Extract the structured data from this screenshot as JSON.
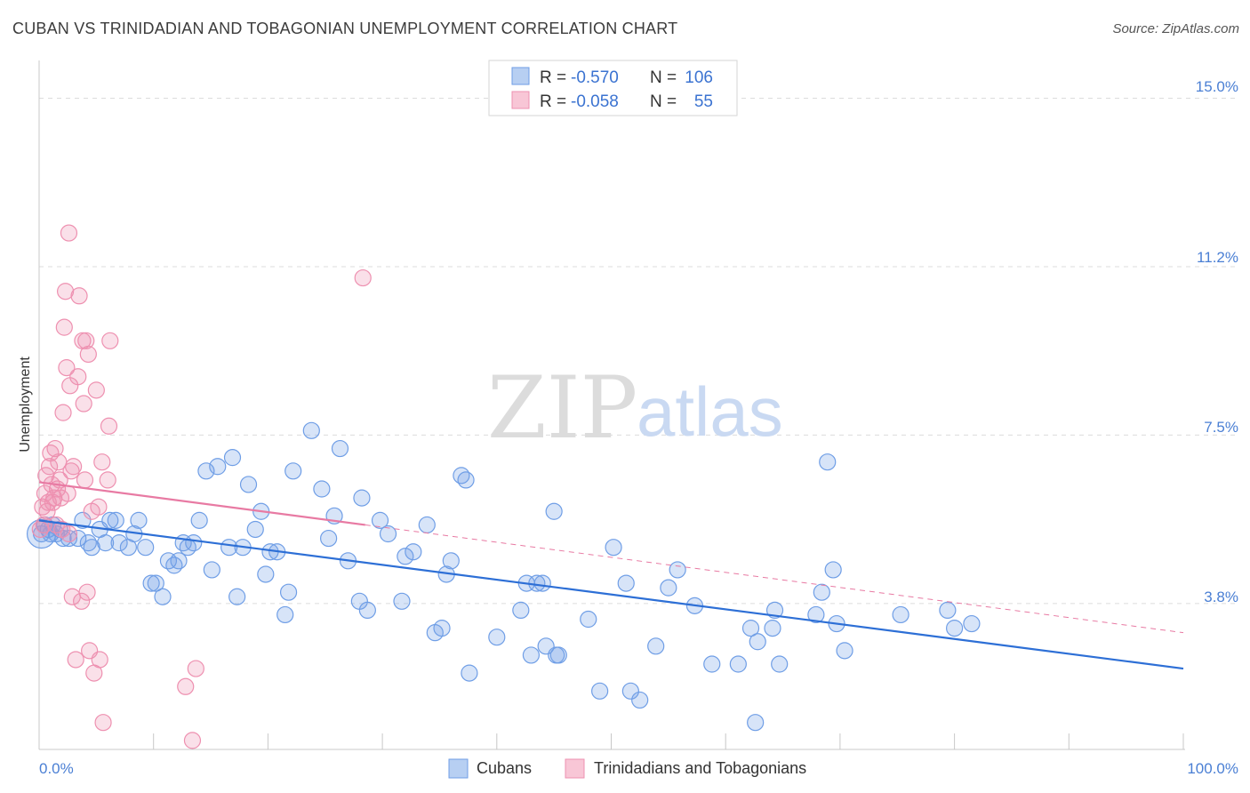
{
  "title": "CUBAN VS TRINIDADIAN AND TOBAGONIAN UNEMPLOYMENT CORRELATION CHART",
  "source": "Source: ZipAtlas.com",
  "watermark": {
    "zip": "ZIP",
    "atlas": "atlas"
  },
  "legend": {
    "rows": [
      {
        "r_label": "R =",
        "r_value": "-0.570",
        "n_label": "N =",
        "n_value": "106"
      },
      {
        "r_label": "R =",
        "r_value": "-0.058",
        "n_label": "N =",
        "n_value": "55"
      }
    ]
  },
  "chart_data": {
    "type": "scatter",
    "title": "CUBAN VS TRINIDADIAN AND TOBAGONIAN UNEMPLOYMENT CORRELATION CHART",
    "xlabel": "",
    "ylabel": "Unemployment",
    "x_tick_labels": [
      "0.0%",
      "100.0%"
    ],
    "y_tick_labels": [
      "15.0%",
      "11.2%",
      "7.5%",
      "3.8%"
    ],
    "y_ticks": [
      15.0,
      11.25,
      7.5,
      3.75
    ],
    "xlim": [
      0,
      100
    ],
    "ylim": [
      0.5,
      16.0
    ],
    "grid": true,
    "colors": {
      "cubans": "#6f9ee6",
      "trini": "#ee90b0",
      "cubans_line": "#2d6fd6",
      "trini_line": "#e87aa3"
    },
    "series": [
      {
        "name": "Cubans",
        "color": "#6f9ee6",
        "r": -0.57,
        "n": 106,
        "trend": {
          "x0": 0,
          "y0": 5.6,
          "x1": 100,
          "y1": 2.3
        },
        "points": [
          [
            0.2,
            5.3
          ],
          [
            0.5,
            5.5
          ],
          [
            0.8,
            5.4
          ],
          [
            1.0,
            5.3
          ],
          [
            1.2,
            5.5
          ],
          [
            1.5,
            5.3
          ],
          [
            1.8,
            5.4
          ],
          [
            2.1,
            5.2
          ],
          [
            2.6,
            5.2
          ],
          [
            3.4,
            5.2
          ],
          [
            3.8,
            5.6
          ],
          [
            4.3,
            5.1
          ],
          [
            4.6,
            5.0
          ],
          [
            5.3,
            5.4
          ],
          [
            5.8,
            5.1
          ],
          [
            6.2,
            5.6
          ],
          [
            6.7,
            5.6
          ],
          [
            7.0,
            5.1
          ],
          [
            7.8,
            5.0
          ],
          [
            8.3,
            5.3
          ],
          [
            8.7,
            5.6
          ],
          [
            9.3,
            5.0
          ],
          [
            9.8,
            4.2
          ],
          [
            10.2,
            4.2
          ],
          [
            10.8,
            3.9
          ],
          [
            11.3,
            4.7
          ],
          [
            11.8,
            4.6
          ],
          [
            12.2,
            4.7
          ],
          [
            12.6,
            5.1
          ],
          [
            13.0,
            5.0
          ],
          [
            13.5,
            5.1
          ],
          [
            14.0,
            5.6
          ],
          [
            14.6,
            6.7
          ],
          [
            15.1,
            4.5
          ],
          [
            15.6,
            6.8
          ],
          [
            16.6,
            5.0
          ],
          [
            16.9,
            7.0
          ],
          [
            17.3,
            3.9
          ],
          [
            17.8,
            5.0
          ],
          [
            18.3,
            6.4
          ],
          [
            18.9,
            5.4
          ],
          [
            19.4,
            5.8
          ],
          [
            19.8,
            4.4
          ],
          [
            20.2,
            4.9
          ],
          [
            20.8,
            4.9
          ],
          [
            21.5,
            3.5
          ],
          [
            21.8,
            4.0
          ],
          [
            22.2,
            6.7
          ],
          [
            23.8,
            7.6
          ],
          [
            24.7,
            6.3
          ],
          [
            25.3,
            5.2
          ],
          [
            25.8,
            5.7
          ],
          [
            26.3,
            7.2
          ],
          [
            27.0,
            4.7
          ],
          [
            28.0,
            3.8
          ],
          [
            28.2,
            6.1
          ],
          [
            28.7,
            3.6
          ],
          [
            29.8,
            5.6
          ],
          [
            30.5,
            5.3
          ],
          [
            31.7,
            3.8
          ],
          [
            32.0,
            4.8
          ],
          [
            32.7,
            4.9
          ],
          [
            33.9,
            5.5
          ],
          [
            34.6,
            3.1
          ],
          [
            35.2,
            3.2
          ],
          [
            35.6,
            4.4
          ],
          [
            36.0,
            4.7
          ],
          [
            36.9,
            6.6
          ],
          [
            37.3,
            6.5
          ],
          [
            37.6,
            2.2
          ],
          [
            40.0,
            3.0
          ],
          [
            42.1,
            3.6
          ],
          [
            42.6,
            4.2
          ],
          [
            43.0,
            2.6
          ],
          [
            43.5,
            4.2
          ],
          [
            44.0,
            4.2
          ],
          [
            44.3,
            2.8
          ],
          [
            45.0,
            5.8
          ],
          [
            45.2,
            2.6
          ],
          [
            45.4,
            2.6
          ],
          [
            48.0,
            3.4
          ],
          [
            49.0,
            1.8
          ],
          [
            50.2,
            5.0
          ],
          [
            51.3,
            4.2
          ],
          [
            51.7,
            1.8
          ],
          [
            52.5,
            1.6
          ],
          [
            53.9,
            2.8
          ],
          [
            55.0,
            4.1
          ],
          [
            55.8,
            4.5
          ],
          [
            57.3,
            3.7
          ],
          [
            58.8,
            2.4
          ],
          [
            61.1,
            2.4
          ],
          [
            62.2,
            3.2
          ],
          [
            62.6,
            1.1
          ],
          [
            62.8,
            2.9
          ],
          [
            64.1,
            3.2
          ],
          [
            64.3,
            3.6
          ],
          [
            64.7,
            2.4
          ],
          [
            67.9,
            3.5
          ],
          [
            68.4,
            4.0
          ],
          [
            68.9,
            6.9
          ],
          [
            69.4,
            4.5
          ],
          [
            69.7,
            3.3
          ],
          [
            70.4,
            2.7
          ],
          [
            75.3,
            3.5
          ],
          [
            79.4,
            3.6
          ],
          [
            80.0,
            3.2
          ],
          [
            81.5,
            3.3
          ]
        ]
      },
      {
        "name": "Trinidadians and Tobagonians",
        "color": "#ee90b0",
        "r": -0.058,
        "n": 55,
        "trend": {
          "x0": 0,
          "y0": 6.45,
          "x1": 28.5,
          "y1": 5.5,
          "dash_to_x": 100,
          "dash_to_y": 3.1
        },
        "points": [
          [
            0.1,
            5.4
          ],
          [
            0.3,
            5.9
          ],
          [
            0.5,
            6.2
          ],
          [
            0.6,
            6.6
          ],
          [
            0.7,
            5.8
          ],
          [
            0.8,
            6.0
          ],
          [
            0.9,
            6.8
          ],
          [
            1.0,
            7.1
          ],
          [
            1.1,
            6.4
          ],
          [
            1.2,
            6.0
          ],
          [
            1.3,
            6.1
          ],
          [
            1.4,
            7.2
          ],
          [
            1.5,
            5.5
          ],
          [
            1.6,
            6.3
          ],
          [
            1.7,
            6.9
          ],
          [
            1.8,
            6.5
          ],
          [
            2.0,
            5.4
          ],
          [
            2.1,
            8.0
          ],
          [
            2.2,
            9.9
          ],
          [
            2.3,
            10.7
          ],
          [
            2.4,
            9.0
          ],
          [
            2.5,
            6.2
          ],
          [
            2.6,
            12.0
          ],
          [
            2.7,
            8.6
          ],
          [
            2.8,
            6.7
          ],
          [
            2.9,
            3.9
          ],
          [
            3.0,
            6.8
          ],
          [
            3.2,
            2.5
          ],
          [
            3.4,
            8.8
          ],
          [
            3.5,
            10.6
          ],
          [
            3.7,
            3.8
          ],
          [
            3.8,
            9.6
          ],
          [
            3.9,
            8.2
          ],
          [
            4.0,
            6.5
          ],
          [
            4.1,
            9.6
          ],
          [
            4.2,
            4.0
          ],
          [
            4.3,
            9.3
          ],
          [
            4.4,
            2.7
          ],
          [
            4.6,
            5.8
          ],
          [
            4.8,
            2.2
          ],
          [
            5.0,
            8.5
          ],
          [
            5.2,
            5.9
          ],
          [
            5.3,
            2.5
          ],
          [
            5.5,
            6.9
          ],
          [
            5.6,
            1.1
          ],
          [
            6.0,
            6.5
          ],
          [
            6.1,
            7.7
          ],
          [
            6.2,
            9.6
          ],
          [
            12.8,
            1.9
          ],
          [
            13.4,
            0.7
          ],
          [
            13.7,
            2.3
          ],
          [
            28.3,
            11.0
          ],
          [
            0.4,
            5.5
          ],
          [
            1.9,
            6.1
          ],
          [
            2.6,
            5.3
          ]
        ]
      }
    ]
  },
  "bottom_legend": {
    "items": [
      "Cubans",
      "Trinidadians and Tobagonians"
    ]
  }
}
